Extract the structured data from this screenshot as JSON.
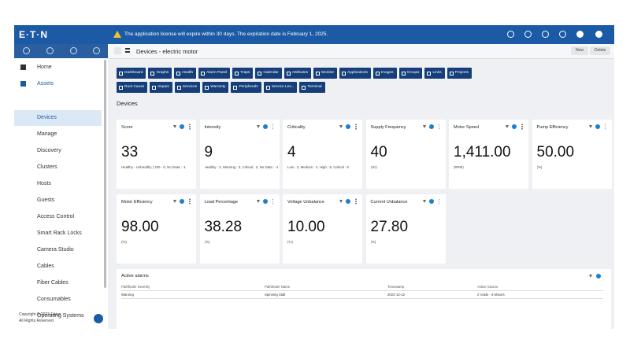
{
  "header": {
    "logo": "E·T·N",
    "notice": "The application license will expire within 30 days. The expiration date is February 1, 2025."
  },
  "sidebar": {
    "items": [
      "Home",
      "Assets",
      "Devices",
      "Manage",
      "Discovery",
      "Clusters",
      "Hosts",
      "Guests",
      "Access Control",
      "Smart Rack Locks",
      "Camera Studio",
      "Cables",
      "Fiber Cables",
      "Consumables",
      "Operating Systems"
    ],
    "footer": [
      "Copyright © 2023 Eaton.",
      "All Rights Reserved"
    ]
  },
  "toolbar": {
    "title": "Devices - electric motor",
    "buttons": [
      "New",
      "Delete"
    ]
  },
  "tabs": [
    "Dashboard",
    "Graphs",
    "Health",
    "Alarm Panel",
    "Traps",
    "Calendar",
    "Attributes",
    "Monitor",
    "Applications",
    "Images",
    "Groups",
    "Links",
    "Projects",
    "Root Cause",
    "Impact",
    "Services",
    "Warranty",
    "Peripherals",
    "Service Lev...",
    "Terminal"
  ],
  "section": "Devices",
  "cards": [
    {
      "title": "Score",
      "value": "33",
      "note": "Healthy - Unhealthy | 100 - 0, No Data : -1"
    },
    {
      "title": "Intensity",
      "value": "9",
      "note": "Healthy : 3, Warning : 3, Critical : 3, No Data : -1"
    },
    {
      "title": "Criticality",
      "value": "4",
      "note": "Low : 3, Medium : 4, High : 6, Critical : 9"
    },
    {
      "title": "Supply Frequency",
      "value": "40",
      "note": "(Hz)"
    },
    {
      "title": "Motor Speed",
      "value": "1,411.00",
      "note": "(RPM)"
    },
    {
      "title": "Pump Efficiency",
      "value": "50.00",
      "note": "(%)"
    },
    {
      "title": "Motor Efficiency",
      "value": "98.00",
      "note": "(%)"
    },
    {
      "title": "Load Percentage",
      "value": "38.28",
      "note": "(%)"
    },
    {
      "title": "Voltage Unbalance",
      "value": "10.00",
      "note": "(%)"
    },
    {
      "title": "Current Unbalance",
      "value": "27.80",
      "note": "(%)"
    }
  ],
  "alarms": {
    "title": "Active alarms",
    "columns": [
      "Pathfinder Severity",
      "Pathfinder Name",
      "Timestamp",
      "Active Source"
    ],
    "rows": [
      [
        "Warning",
        "Spinning Stall",
        "2023-12-12",
        "2 Voids - 3 Motors"
      ]
    ]
  }
}
